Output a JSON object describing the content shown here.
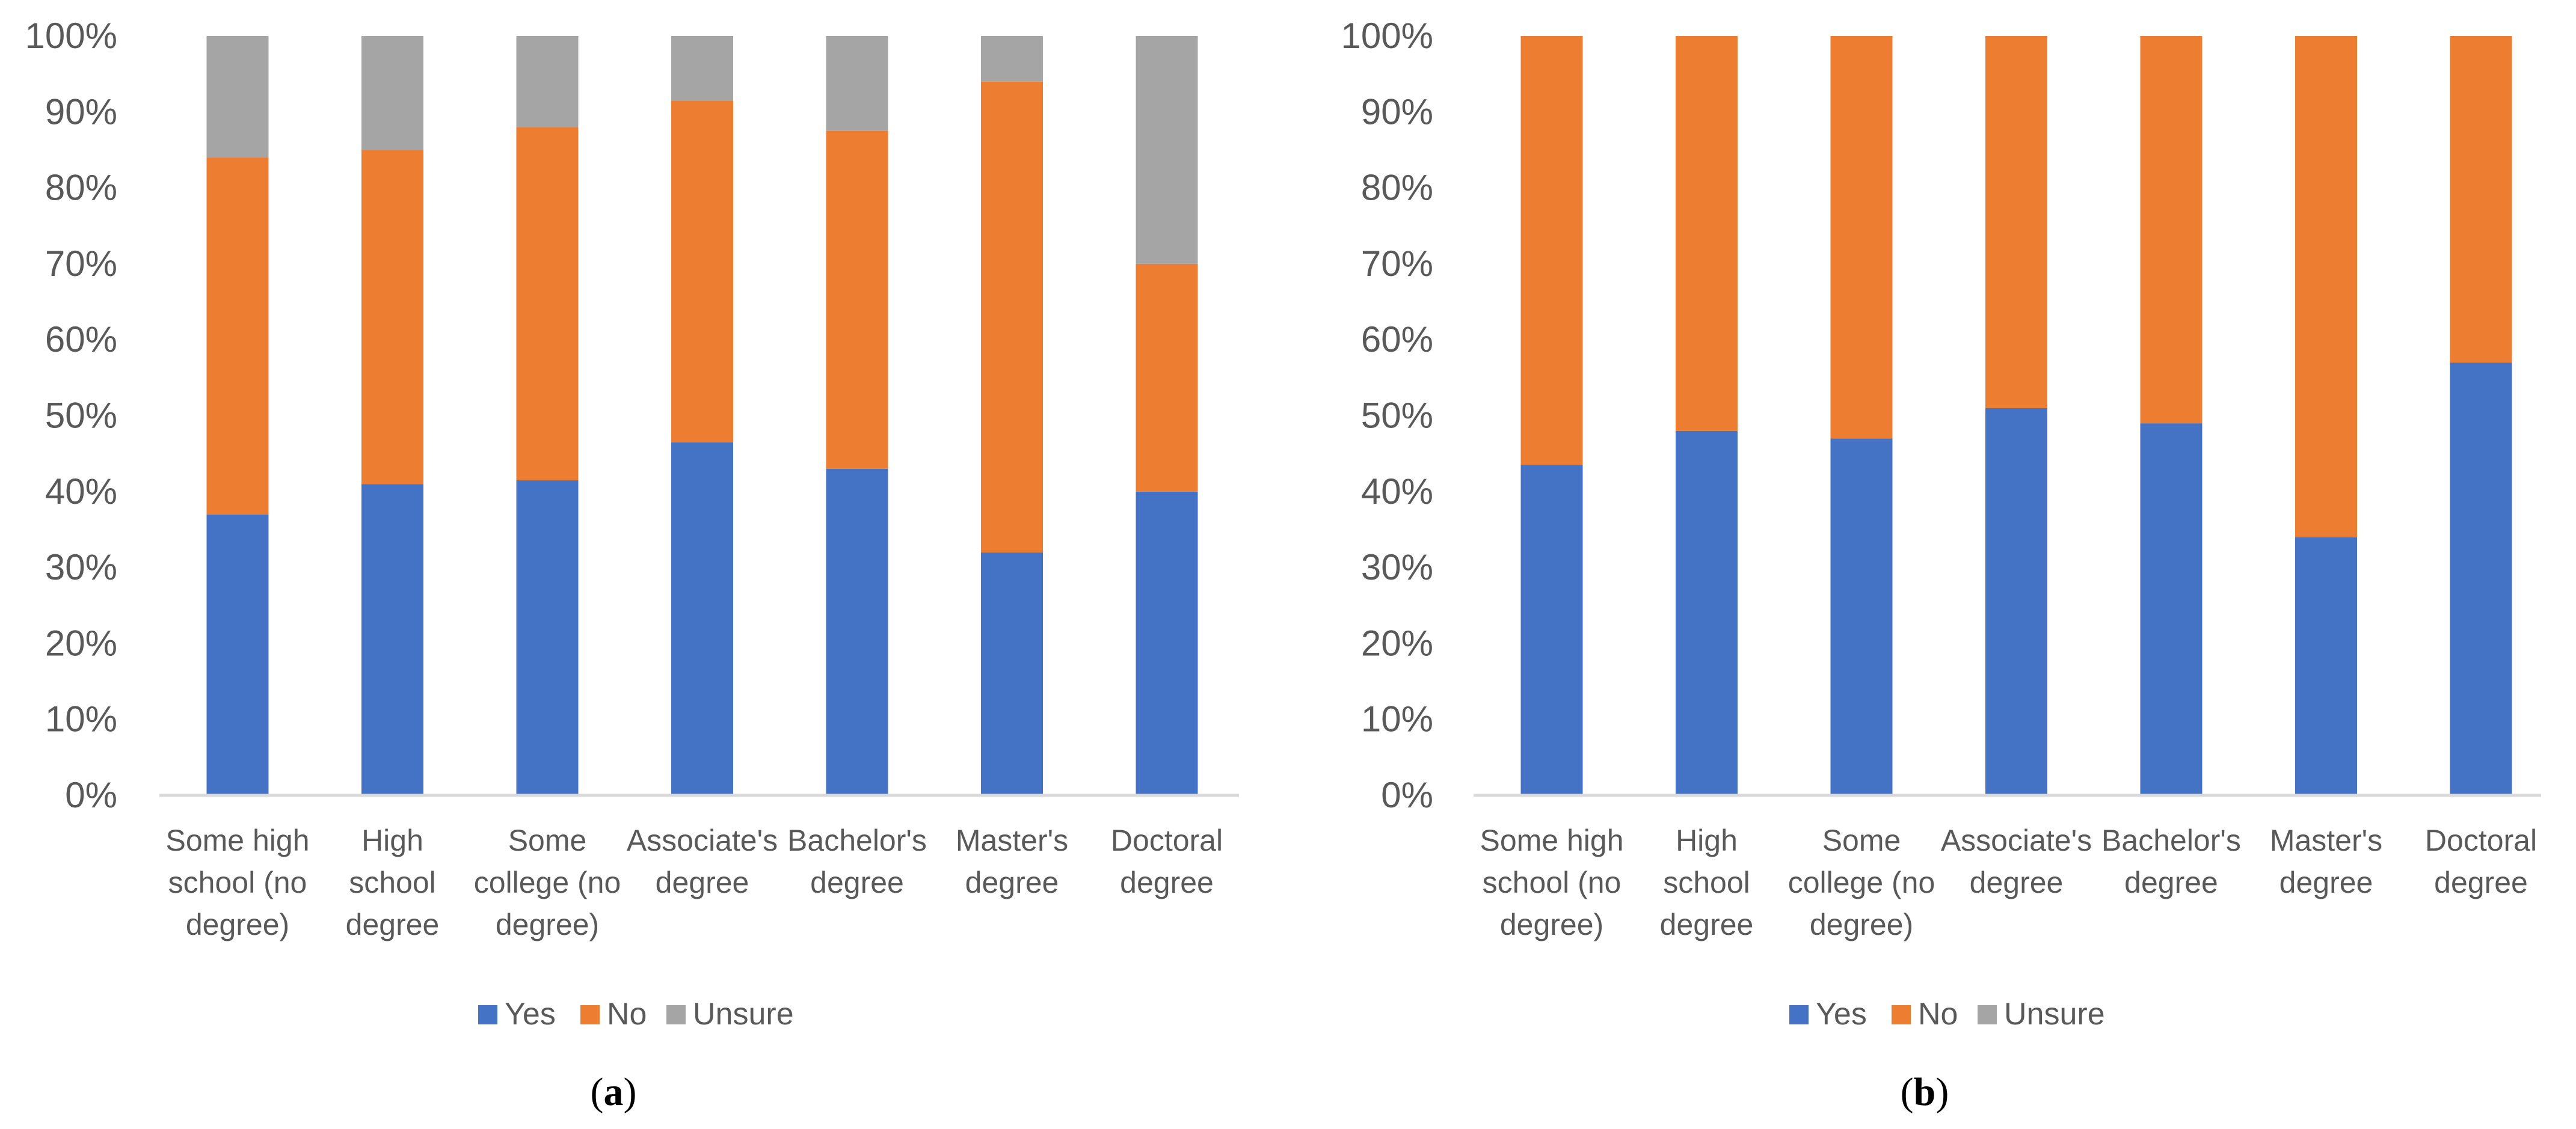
{
  "colors": {
    "yes": "#4472C4",
    "no": "#ED7D31",
    "unsure": "#A5A5A5",
    "axis": "#D9D9D9",
    "text": "#595959"
  },
  "chart_data": [
    {
      "type": "bar",
      "stacked": true,
      "panel_label": "a",
      "categories": [
        [
          "Some high",
          "school (no",
          "degree)"
        ],
        [
          "High",
          "school",
          "degree"
        ],
        [
          "Some",
          "college (no",
          "degree)"
        ],
        [
          "Associate's",
          "degree"
        ],
        [
          "Bachelor's",
          "degree"
        ],
        [
          "Master's",
          "degree"
        ],
        [
          "Doctoral",
          "degree"
        ]
      ],
      "series": [
        {
          "name": "Yes",
          "color_key": "yes",
          "values": [
            37,
            41,
            41.5,
            46.5,
            43,
            32,
            40
          ]
        },
        {
          "name": "No",
          "color_key": "no",
          "values": [
            47,
            44,
            46.5,
            45,
            44.5,
            62,
            30
          ]
        },
        {
          "name": "Unsure",
          "color_key": "unsure",
          "values": [
            16,
            15,
            12,
            8.5,
            12.5,
            6,
            30
          ]
        }
      ],
      "yticks": [
        "0%",
        "10%",
        "20%",
        "30%",
        "40%",
        "50%",
        "60%",
        "70%",
        "80%",
        "90%",
        "100%"
      ],
      "ylim": [
        0,
        100
      ],
      "legend": [
        "Yes",
        "No",
        "Unsure"
      ],
      "legend_position": "bottom"
    },
    {
      "type": "bar",
      "stacked": true,
      "panel_label": "b",
      "categories": [
        [
          "Some high",
          "school (no",
          "degree)"
        ],
        [
          "High",
          "school",
          "degree"
        ],
        [
          "Some",
          "college (no",
          "degree)"
        ],
        [
          "Associate's",
          "degree"
        ],
        [
          "Bachelor's",
          "degree"
        ],
        [
          "Master's",
          "degree"
        ],
        [
          "Doctoral",
          "degree"
        ]
      ],
      "series": [
        {
          "name": "Yes",
          "color_key": "yes",
          "values": [
            43.5,
            48,
            47,
            51,
            49,
            34,
            57
          ]
        },
        {
          "name": "No",
          "color_key": "no",
          "values": [
            56.5,
            52,
            53,
            49,
            51,
            66,
            43
          ]
        },
        {
          "name": "Unsure",
          "color_key": "unsure",
          "values": [
            0,
            0,
            0,
            0,
            0,
            0,
            0
          ]
        }
      ],
      "yticks": [
        "0%",
        "10%",
        "20%",
        "30%",
        "40%",
        "50%",
        "60%",
        "70%",
        "80%",
        "90%",
        "100%"
      ],
      "ylim": [
        0,
        100
      ],
      "legend": [
        "Yes",
        "No",
        "Unsure"
      ],
      "legend_position": "bottom"
    }
  ]
}
